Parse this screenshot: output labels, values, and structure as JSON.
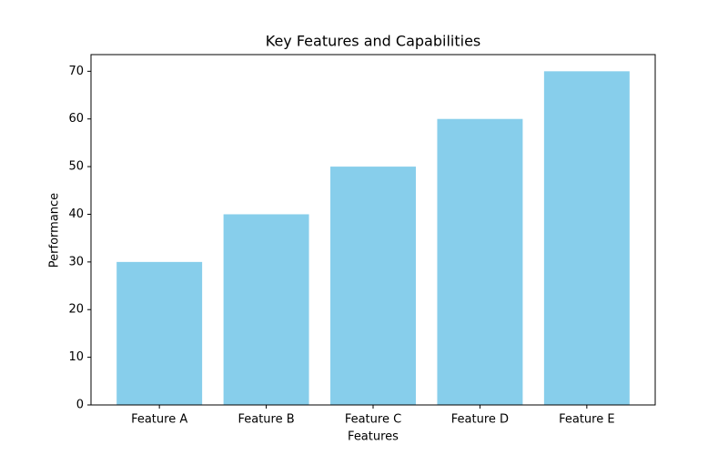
{
  "chart_data": {
    "type": "bar",
    "title": "Key Features and Capabilities",
    "x_label": "Features",
    "y_label": "Performance",
    "categories": [
      "Feature A",
      "Feature B",
      "Feature C",
      "Feature D",
      "Feature E"
    ],
    "values": [
      30,
      40,
      50,
      60,
      70
    ],
    "color": "#87ceeb",
    "ylim": [
      0,
      73.5
    ],
    "yticks": [
      0,
      10,
      20,
      30,
      40,
      50,
      60,
      70
    ],
    "grid": false
  }
}
